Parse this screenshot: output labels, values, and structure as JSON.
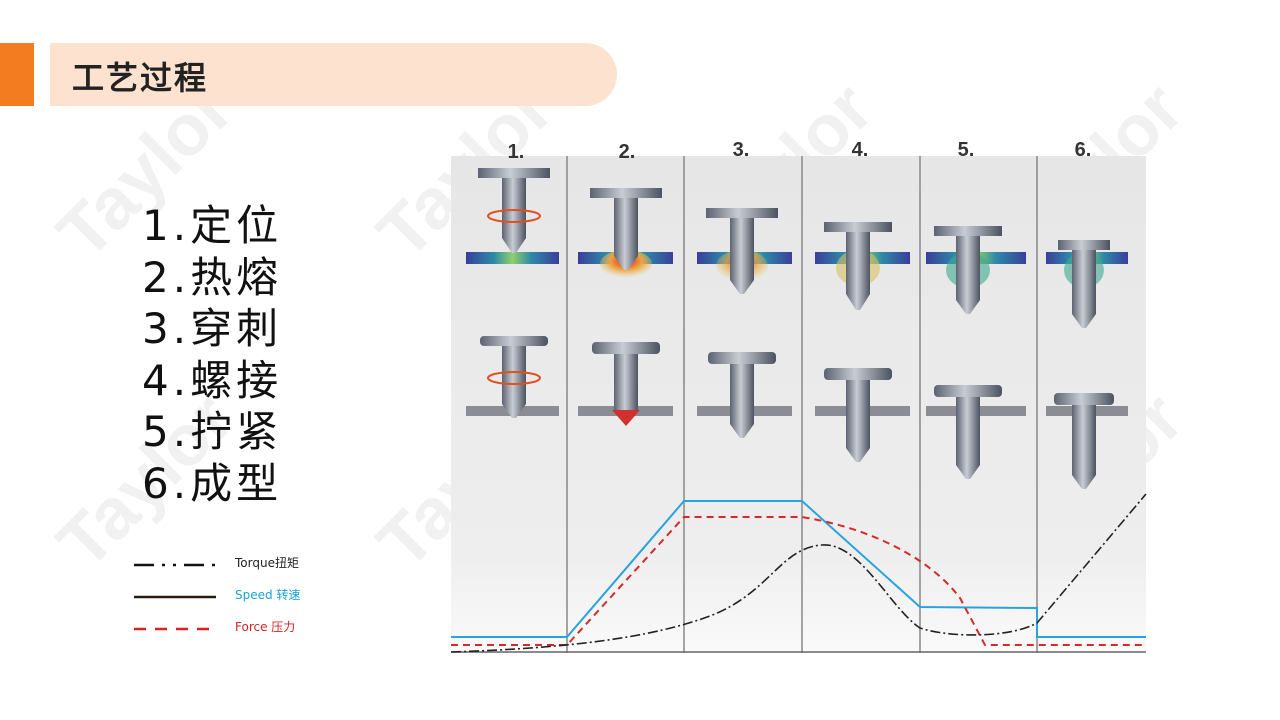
{
  "watermark": "Taylor",
  "header": {
    "title": "工艺过程"
  },
  "steps": [
    "1.定位",
    "2.热熔",
    "3.穿刺",
    "4.螺接",
    "5.拧紧",
    "6.成型"
  ],
  "diagram": {
    "column_labels": [
      "1.",
      "2.",
      "3.",
      "4.",
      "5.",
      "6."
    ]
  },
  "legend": [
    {
      "label": "Torque扭矩",
      "color": "#000000",
      "style": "dash-dot"
    },
    {
      "label": "Speed 转速",
      "color": "#2a1a10",
      "label_color": "#1aa0d8",
      "style": "solid"
    },
    {
      "label": "Force 压力",
      "color": "#e02020",
      "label_color": "#e02020",
      "style": "dashed"
    }
  ],
  "colors": {
    "accent": "#f47c20",
    "title_bg": "#fde3cf",
    "speed": "#29a3e0",
    "force": "#d42a2a",
    "torque": "#222222"
  }
}
